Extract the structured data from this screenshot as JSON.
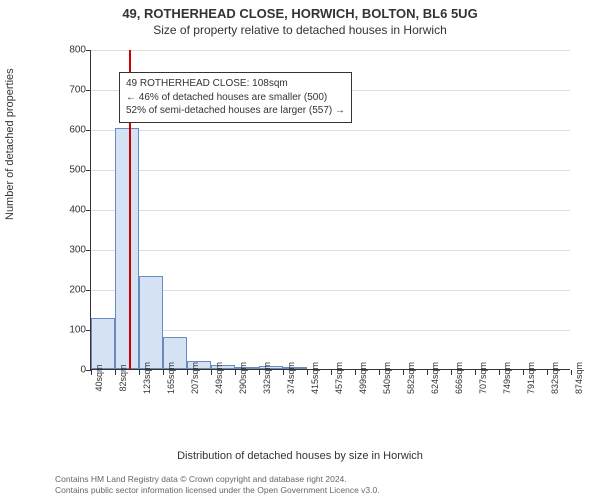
{
  "title_main": "49, ROTHERHEAD CLOSE, HORWICH, BOLTON, BL6 5UG",
  "title_sub": "Size of property relative to detached houses in Horwich",
  "y_axis_label": "Number of detached properties",
  "x_axis_label": "Distribution of detached houses by size in Horwich",
  "chart": {
    "type": "histogram",
    "background_color": "#ffffff",
    "grid_color": "#dddddd",
    "axis_color": "#333333",
    "bar_fill_color": "#d4e2f4",
    "bar_border_color": "#6a8bc1",
    "marker_line_color": "#cc0000",
    "marker_x_value": 108,
    "ylim": [
      0,
      800
    ],
    "ytick_step": 100,
    "y_ticks": [
      0,
      100,
      200,
      300,
      400,
      500,
      600,
      700,
      800
    ],
    "x_tick_labels": [
      "40sqm",
      "82sqm",
      "123sqm",
      "165sqm",
      "207sqm",
      "249sqm",
      "290sqm",
      "332sqm",
      "374sqm",
      "415sqm",
      "457sqm",
      "499sqm",
      "540sqm",
      "582sqm",
      "624sqm",
      "666sqm",
      "707sqm",
      "749sqm",
      "791sqm",
      "832sqm",
      "874sqm"
    ],
    "x_min": 40,
    "x_max": 874,
    "bars": [
      {
        "x_start": 40,
        "x_end": 82,
        "value": 128
      },
      {
        "x_start": 82,
        "x_end": 123,
        "value": 603
      },
      {
        "x_start": 123,
        "x_end": 165,
        "value": 232
      },
      {
        "x_start": 165,
        "x_end": 207,
        "value": 79
      },
      {
        "x_start": 207,
        "x_end": 249,
        "value": 21
      },
      {
        "x_start": 249,
        "x_end": 290,
        "value": 11
      },
      {
        "x_start": 290,
        "x_end": 332,
        "value": 5
      },
      {
        "x_start": 332,
        "x_end": 374,
        "value": 8
      },
      {
        "x_start": 374,
        "x_end": 415,
        "value": 2
      }
    ]
  },
  "annotation": {
    "line1": "49 ROTHERHEAD CLOSE: 108sqm",
    "line2": "← 46% of detached houses are smaller (500)",
    "line3": "52% of semi-detached houses are larger (557) →",
    "box_border_color": "#333333",
    "box_bg_color": "#ffffff",
    "font_size": 10
  },
  "attribution": {
    "line1": "Contains HM Land Registry data © Crown copyright and database right 2024.",
    "line2": "Contains public sector information licensed under the Open Government Licence v3.0."
  }
}
